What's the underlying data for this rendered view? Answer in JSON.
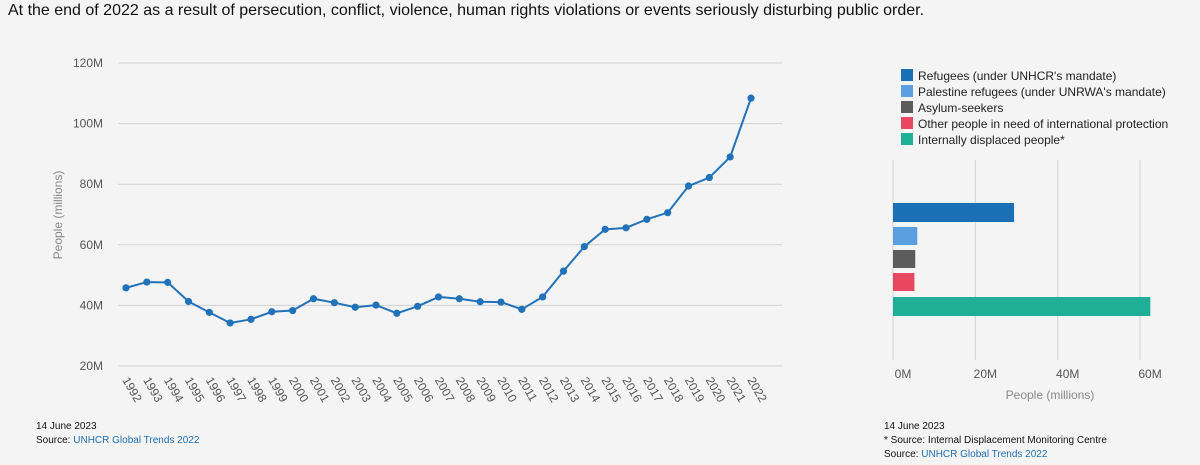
{
  "headline": "At the end of 2022 as a result of persecution, conflict, violence, human rights violations or events seriously disturbing public order.",
  "colors": {
    "line": "#2172b8",
    "grid": "#d2d2d2",
    "link": "#1f6fb2"
  },
  "chart_data": [
    {
      "type": "line",
      "ylabel": "People (millions)",
      "ylim": [
        20,
        120
      ],
      "yticks": [
        "20M",
        "40M",
        "60M",
        "80M",
        "100M",
        "120M"
      ],
      "ytick_values": [
        20,
        40,
        60,
        80,
        100,
        120
      ],
      "grid": true,
      "x": [
        "1992",
        "1993",
        "1994",
        "1995",
        "1996",
        "1997",
        "1998",
        "1999",
        "2000",
        "2001",
        "2002",
        "2003",
        "2004",
        "2005",
        "2006",
        "2007",
        "2008",
        "2009",
        "2010",
        "2011",
        "2012",
        "2013",
        "2014",
        "2015",
        "2016",
        "2017",
        "2018",
        "2019",
        "2020",
        "2021",
        "2022"
      ],
      "series": [
        {
          "values": [
            45.8,
            47.7,
            47.6,
            41.3,
            37.7,
            34.2,
            35.4,
            37.9,
            38.3,
            42.2,
            40.9,
            39.4,
            40.1,
            37.4,
            39.7,
            42.8,
            42.2,
            41.2,
            41.1,
            38.7,
            42.8,
            51.3,
            59.4,
            65.1,
            65.6,
            68.4,
            70.6,
            79.4,
            82.2,
            89.0,
            108.4
          ]
        }
      ]
    },
    {
      "type": "bar",
      "orientation": "horizontal",
      "xlabel": "People (millions)",
      "xlim": [
        0,
        68
      ],
      "xticks": [
        "0M",
        "20M",
        "40M",
        "60M"
      ],
      "xtick_values": [
        0,
        20,
        40,
        60
      ],
      "grid": true,
      "legend_position": "top",
      "categories": [
        "Refugees (under UNHCR's mandate)",
        "Palestine refugees (under UNRWA's mandate)",
        "Asylum-seekers",
        "Other people in need of international protection",
        "Internally displaced people*"
      ],
      "values": [
        29.4,
        5.9,
        5.4,
        5.2,
        62.5
      ],
      "colors": [
        "#1a6fb5",
        "#5b9fe0",
        "#5c5c5c",
        "#e8475f",
        "#1fae96"
      ]
    }
  ],
  "footer_left": {
    "date": "14 June 2023",
    "source_label": "Source:",
    "source_link": "UNHCR Global Trends 2022"
  },
  "footer_right": {
    "date": "14 June 2023",
    "note": "* Source: Internal Displacement Monitoring Centre",
    "source_label": "Source:",
    "source_link": "UNHCR Global Trends 2022"
  }
}
